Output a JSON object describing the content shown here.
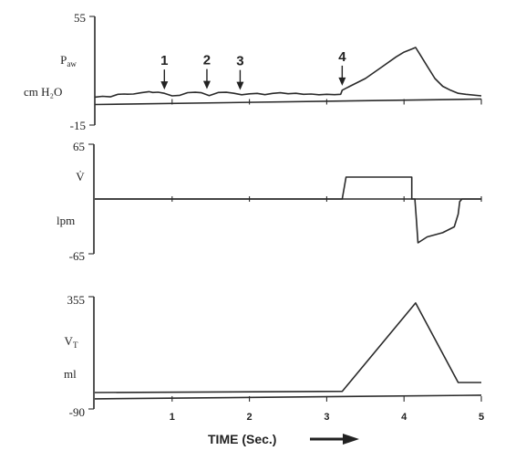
{
  "chart_data": [
    {
      "type": "line",
      "y_tick_labels": [
        "55",
        "-15"
      ],
      "ylim": [
        -15,
        55
      ],
      "ylabel": {
        "main": "P",
        "sub": "aw"
      },
      "unit_label": "cm H₂O",
      "x": [
        0,
        0.1,
        0.2,
        0.3,
        0.38,
        0.42,
        0.5,
        0.6,
        0.7,
        0.75,
        0.82,
        0.9,
        1.0,
        1.1,
        1.2,
        1.3,
        1.38,
        1.48,
        1.55,
        1.6,
        1.7,
        1.8,
        1.9,
        2.0,
        2.1,
        2.2,
        2.3,
        2.4,
        2.5,
        2.6,
        2.7,
        2.8,
        2.9,
        3.0,
        3.1,
        3.18,
        3.2,
        3.22,
        3.3,
        3.5,
        3.7,
        3.9,
        4.0,
        4.1,
        4.15,
        4.2,
        4.3,
        4.4,
        4.5,
        4.6,
        4.7,
        4.8,
        5.0
      ],
      "values": [
        3,
        3.5,
        3.2,
        4.8,
        5,
        4.9,
        5,
        5.8,
        6.5,
        6,
        6.2,
        5.5,
        3.8,
        4.2,
        5.9,
        6.1,
        5.8,
        4,
        5.2,
        6,
        6.1,
        5.5,
        4.5,
        5.1,
        5.4,
        4.6,
        5.4,
        5.8,
        5.2,
        5.5,
        4.8,
        5,
        4.5,
        4.8,
        4.6,
        4.8,
        7.5,
        8,
        10,
        15,
        22,
        29,
        32,
        34,
        35,
        31,
        23,
        15,
        10,
        7.5,
        5.5,
        4.8,
        3.8
      ],
      "baseline": 0,
      "annotations": [
        {
          "label": "1",
          "x": 0.9,
          "y": 5.5
        },
        {
          "label": "2",
          "x": 1.45,
          "y": 5.8
        },
        {
          "label": "3",
          "x": 1.88,
          "y": 5.2
        },
        {
          "label": "4",
          "x": 3.2,
          "y": 8
        }
      ]
    },
    {
      "type": "line",
      "y_tick_labels": [
        "65",
        "-65"
      ],
      "ylim": [
        -65,
        65
      ],
      "ylabel": "V̇",
      "unit_label": "lpm",
      "x": [
        0,
        3.18,
        3.2,
        3.25,
        3.5,
        4.0,
        4.1,
        4.1,
        4.14,
        4.16,
        4.18,
        4.3,
        4.5,
        4.65,
        4.7,
        4.72,
        4.75,
        5.0
      ],
      "values": [
        0,
        0,
        0,
        26,
        26,
        26,
        26,
        0,
        0,
        -25,
        -52,
        -45,
        -40,
        -33,
        -18,
        -3,
        0,
        0
      ],
      "baseline": 0
    },
    {
      "type": "line",
      "y_tick_labels": [
        "355",
        "-90"
      ],
      "ylim": [
        -90,
        355
      ],
      "ylabel": {
        "main": "V",
        "sub": "T"
      },
      "unit_label": "ml",
      "x": [
        0,
        3.2,
        4.15,
        4.7,
        5.0
      ],
      "values": [
        -25,
        -20,
        330,
        15,
        15
      ],
      "baseline": -50
    }
  ],
  "x_axis": {
    "ticks": [
      1,
      2,
      3,
      4,
      5
    ],
    "labels": [
      "1",
      "2",
      "3",
      "4",
      "5"
    ],
    "xlim": [
      0,
      5
    ],
    "title": "TIME (Sec.)"
  }
}
